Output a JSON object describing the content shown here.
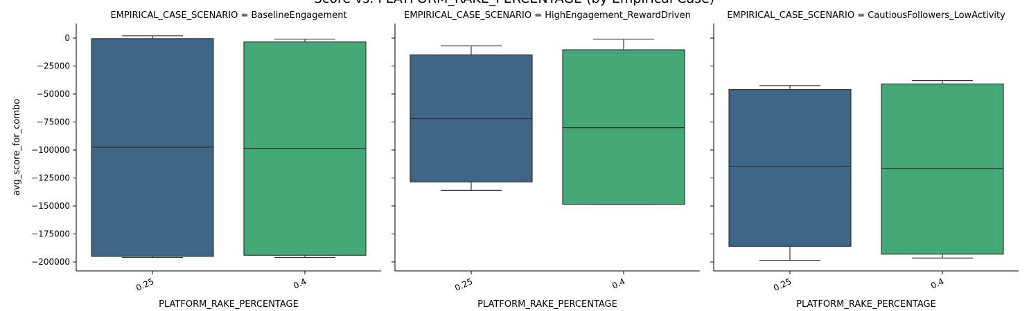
{
  "chart_data": {
    "type": "box",
    "title": "Score vs. PLATFORM_RAKE_PERCENTAGE (by Empirical Case)",
    "xlabel": "PLATFORM_RAKE_PERCENTAGE",
    "ylabel": "avg_score_for_combo",
    "ylim": [
      -208000,
      13000
    ],
    "yticks": [
      0,
      -25000,
      -50000,
      -75000,
      -100000,
      -125000,
      -150000,
      -175000,
      -200000
    ],
    "categories": [
      "0.25",
      "0.4"
    ],
    "colors": [
      "#3e6583",
      "#44a876"
    ],
    "panels": [
      {
        "title": "EMPIRICAL_CASE_SCENARIO = BaselineEngagement",
        "boxes": [
          {
            "category": "0.25",
            "whislo": -196000,
            "q1": -195000,
            "med": -97500,
            "q3": -500,
            "whishi": 2000
          },
          {
            "category": "0.4",
            "whislo": -196000,
            "q1": -194000,
            "med": -98500,
            "q3": -3500,
            "whishi": -1000
          }
        ]
      },
      {
        "title": "EMPIRICAL_CASE_SCENARIO = HighEngagement_RewardDriven",
        "boxes": [
          {
            "category": "0.25",
            "whislo": -136000,
            "q1": -128500,
            "med": -72000,
            "q3": -15000,
            "whishi": -7000
          },
          {
            "category": "0.4",
            "whislo": -148500,
            "q1": -148500,
            "med": -80000,
            "q3": -10500,
            "whishi": -1000
          }
        ]
      },
      {
        "title": "EMPIRICAL_CASE_SCENARIO = CautiousFollowers_LowActivity",
        "boxes": [
          {
            "category": "0.25",
            "whislo": -198500,
            "q1": -186000,
            "med": -114500,
            "q3": -46000,
            "whishi": -42500
          },
          {
            "category": "0.4",
            "whislo": -196500,
            "q1": -193000,
            "med": -116500,
            "q3": -41000,
            "whishi": -38000
          }
        ]
      }
    ]
  }
}
